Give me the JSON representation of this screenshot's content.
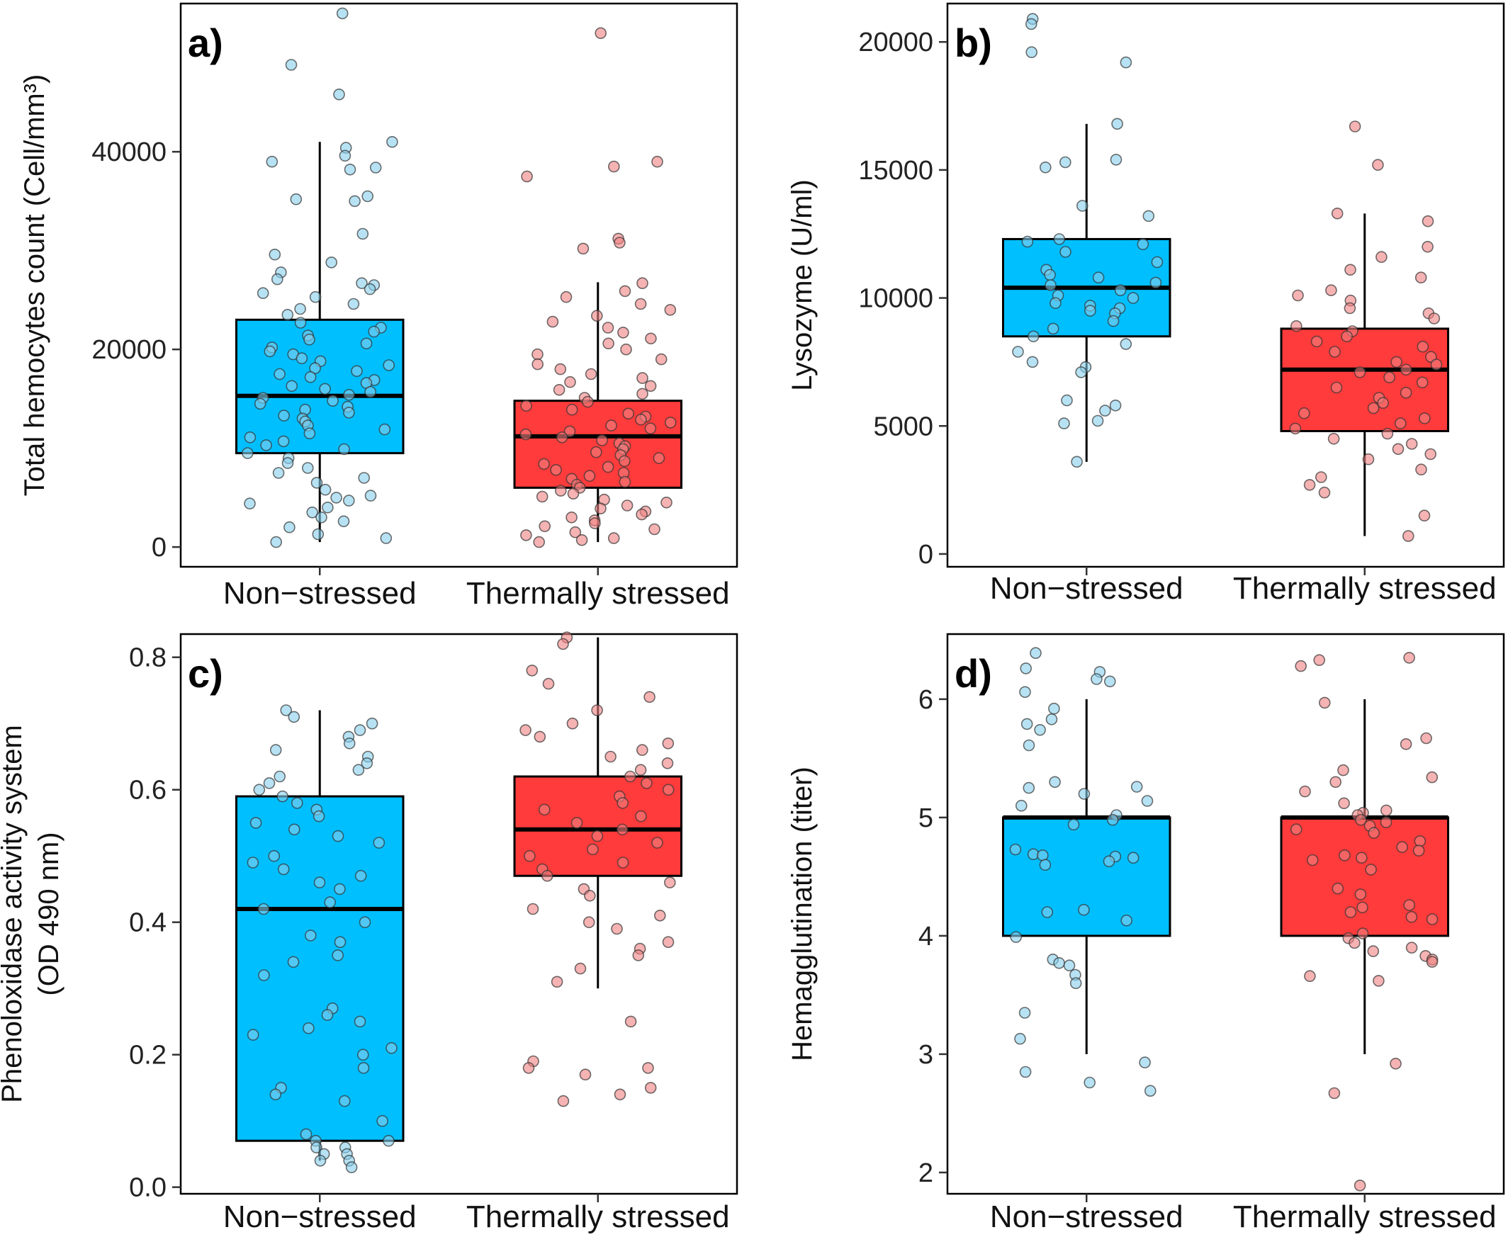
{
  "chart_data": [
    {
      "type": "box",
      "panel_label": "a)",
      "ylabel_lines": [
        "Total hemocytes count (Cell/mm³)"
      ],
      "categories": [
        "Non−stressed",
        "Thermally stressed"
      ],
      "ylim": [
        -2000,
        55000
      ],
      "yticks": [
        0,
        20000,
        40000
      ],
      "colors": {
        "box": [
          "#00BFFF",
          "#FF3B3B"
        ],
        "points": [
          "#87CEEB",
          "#F08080"
        ]
      },
      "boxes": [
        {
          "whisker_low": 500,
          "q1": 9500,
          "median": 15300,
          "q3": 23000,
          "whisker_high": 41000
        },
        {
          "whisker_low": 500,
          "q1": 6000,
          "median": 11200,
          "q3": 14800,
          "whisker_high": 26800
        }
      ],
      "series": [
        {
          "values": [
            54000,
            48800,
            45800,
            41000,
            40400,
            39600,
            39000,
            38400,
            38200,
            35500,
            35000,
            35200,
            31700,
            29600,
            28800,
            27800,
            27100,
            26700,
            26500,
            26100,
            25700,
            25300,
            24600,
            24100,
            23500,
            22700,
            22200,
            21800,
            21400,
            21000,
            20600,
            20200,
            19800,
            19500,
            19100,
            18800,
            18400,
            18100,
            17800,
            17500,
            17200,
            16900,
            16600,
            16300,
            16000,
            15700,
            15400,
            15100,
            14800,
            14500,
            14200,
            13900,
            13600,
            13300,
            13000,
            12700,
            12300,
            11900,
            11500,
            11100,
            10700,
            10300,
            9900,
            9500,
            9000,
            8500,
            8000,
            7500,
            7000,
            6500,
            5800,
            5200,
            5000,
            4700,
            4400,
            4000,
            3500,
            3000,
            2600,
            2000,
            1300,
            900,
            500
          ]
        },
        {
          "values": [
            52000,
            39000,
            38500,
            37500,
            31200,
            30800,
            30200,
            26700,
            25900,
            25300,
            24600,
            24000,
            23400,
            22800,
            22200,
            21700,
            21100,
            20600,
            20000,
            19500,
            19000,
            18500,
            18000,
            17500,
            17100,
            16700,
            16300,
            15900,
            15500,
            15100,
            14700,
            14300,
            13900,
            13500,
            13200,
            12900,
            12600,
            12300,
            12000,
            11700,
            11400,
            11100,
            10800,
            10500,
            10200,
            9900,
            9600,
            9300,
            9000,
            8700,
            8400,
            8100,
            7800,
            7500,
            7200,
            6900,
            6600,
            6300,
            6000,
            5700,
            5400,
            5100,
            4800,
            4500,
            4200,
            3900,
            3600,
            3300,
            3000,
            2700,
            2400,
            2100,
            1800,
            1500,
            1200,
            900,
            700,
            500
          ]
        }
      ]
    },
    {
      "type": "box",
      "panel_label": "b)",
      "ylabel_lines": [
        "Lysozyme (U/ml)"
      ],
      "categories": [
        "Non−stressed",
        "Thermally stressed"
      ],
      "ylim": [
        -500,
        21500
      ],
      "yticks": [
        0,
        5000,
        10000,
        15000,
        20000
      ],
      "colors": {
        "box": [
          "#00BFFF",
          "#FF3B3B"
        ],
        "points": [
          "#87CEEB",
          "#F08080"
        ]
      },
      "boxes": [
        {
          "whisker_low": 3600,
          "q1": 8500,
          "median": 10400,
          "q3": 12300,
          "whisker_high": 16800
        },
        {
          "whisker_low": 700,
          "q1": 4800,
          "median": 7200,
          "q3": 8800,
          "whisker_high": 13300
        }
      ],
      "series": [
        {
          "values": [
            20900,
            20700,
            19600,
            19200,
            16800,
            15400,
            15300,
            15100,
            13600,
            13200,
            12300,
            12200,
            12100,
            11800,
            11400,
            11100,
            10900,
            10800,
            10600,
            10500,
            10300,
            10100,
            10000,
            9800,
            9700,
            9600,
            9500,
            9400,
            9100,
            8800,
            8500,
            8200,
            7900,
            7500,
            7300,
            7100,
            6000,
            5800,
            5600,
            5200,
            5100,
            3600
          ]
        },
        {
          "values": [
            16700,
            15200,
            13300,
            13000,
            12000,
            11600,
            11100,
            10800,
            10300,
            10100,
            9900,
            9600,
            9400,
            9200,
            8900,
            8700,
            8500,
            8300,
            8100,
            7900,
            7700,
            7500,
            7400,
            7200,
            7100,
            6900,
            6700,
            6500,
            6300,
            6100,
            5900,
            5700,
            5500,
            5300,
            5100,
            4900,
            4700,
            4500,
            4300,
            4100,
            3900,
            3700,
            3300,
            3000,
            2700,
            2400,
            1500,
            700
          ]
        }
      ]
    },
    {
      "type": "box",
      "panel_label": "c)",
      "ylabel_lines": [
        "Phenoloxidase activity system",
        "(OD 490 nm)"
      ],
      "categories": [
        "Non−stressed",
        "Thermally stressed"
      ],
      "ylim": [
        -0.01,
        0.835
      ],
      "yticks": [
        0.0,
        0.2,
        0.4,
        0.6,
        0.8
      ],
      "tick_decimals": 1,
      "colors": {
        "box": [
          "#00BFFF",
          "#FF3B3B"
        ],
        "points": [
          "#87CEEB",
          "#F08080"
        ]
      },
      "boxes": [
        {
          "whisker_low": 0.04,
          "q1": 0.07,
          "median": 0.42,
          "q3": 0.59,
          "whisker_high": 0.72
        },
        {
          "whisker_low": 0.3,
          "q1": 0.47,
          "median": 0.54,
          "q3": 0.62,
          "whisker_high": 0.83
        }
      ],
      "series": [
        {
          "values": [
            0.72,
            0.71,
            0.7,
            0.69,
            0.68,
            0.67,
            0.66,
            0.65,
            0.64,
            0.63,
            0.62,
            0.61,
            0.6,
            0.59,
            0.58,
            0.57,
            0.56,
            0.55,
            0.54,
            0.53,
            0.52,
            0.5,
            0.49,
            0.48,
            0.47,
            0.46,
            0.45,
            0.43,
            0.42,
            0.4,
            0.38,
            0.37,
            0.35,
            0.34,
            0.32,
            0.27,
            0.26,
            0.25,
            0.24,
            0.23,
            0.21,
            0.2,
            0.18,
            0.15,
            0.14,
            0.13,
            0.1,
            0.08,
            0.07,
            0.07,
            0.06,
            0.06,
            0.05,
            0.05,
            0.04,
            0.04,
            0.03
          ]
        },
        {
          "values": [
            0.83,
            0.82,
            0.78,
            0.76,
            0.74,
            0.72,
            0.7,
            0.69,
            0.68,
            0.67,
            0.66,
            0.65,
            0.64,
            0.63,
            0.62,
            0.61,
            0.6,
            0.59,
            0.58,
            0.57,
            0.56,
            0.55,
            0.54,
            0.53,
            0.52,
            0.51,
            0.5,
            0.49,
            0.48,
            0.47,
            0.46,
            0.45,
            0.44,
            0.42,
            0.41,
            0.4,
            0.39,
            0.37,
            0.36,
            0.35,
            0.33,
            0.31,
            0.25,
            0.19,
            0.18,
            0.18,
            0.17,
            0.15,
            0.14,
            0.13
          ]
        }
      ]
    },
    {
      "type": "box",
      "panel_label": "d)",
      "ylabel_lines": [
        "Hemagglutination (titer)"
      ],
      "categories": [
        "Non−stressed",
        "Thermally stressed"
      ],
      "ylim": [
        1.82,
        6.55
      ],
      "yticks": [
        2,
        3,
        4,
        5,
        6
      ],
      "colors": {
        "box": [
          "#00BFFF",
          "#FF3B3B"
        ],
        "points": [
          "#87CEEB",
          "#F08080"
        ]
      },
      "boxes": [
        {
          "whisker_low": 3.0,
          "q1": 4.0,
          "median": 5.0,
          "q3": 5.0,
          "whisker_high": 6.0
        },
        {
          "whisker_low": 3.0,
          "q1": 4.0,
          "median": 5.0,
          "q3": 5.0,
          "whisker_high": 6.0
        }
      ],
      "series": [
        {
          "values": [
            6.39,
            6.26,
            6.23,
            6.17,
            6.15,
            6.06,
            5.92,
            5.83,
            5.79,
            5.74,
            5.61,
            5.3,
            5.26,
            5.25,
            5.2,
            5.14,
            5.1,
            5.02,
            4.98,
            4.94,
            4.73,
            4.69,
            4.68,
            4.67,
            4.66,
            4.63,
            4.6,
            4.22,
            4.2,
            4.13,
            3.99,
            3.8,
            3.77,
            3.75,
            3.67,
            3.6,
            3.35,
            3.13,
            2.93,
            2.85,
            2.76,
            2.69
          ]
        },
        {
          "values": [
            6.35,
            6.33,
            6.28,
            5.97,
            5.67,
            5.62,
            5.4,
            5.34,
            5.3,
            5.22,
            5.12,
            5.06,
            5.04,
            5.02,
            4.98,
            4.96,
            4.93,
            4.9,
            4.87,
            4.8,
            4.75,
            4.72,
            4.68,
            4.66,
            4.64,
            4.56,
            4.4,
            4.35,
            4.26,
            4.24,
            4.2,
            4.16,
            4.14,
            4.02,
            3.98,
            3.94,
            3.9,
            3.87,
            3.83,
            3.8,
            3.78,
            3.66,
            3.62,
            2.92,
            2.67,
            1.89
          ]
        }
      ]
    }
  ]
}
